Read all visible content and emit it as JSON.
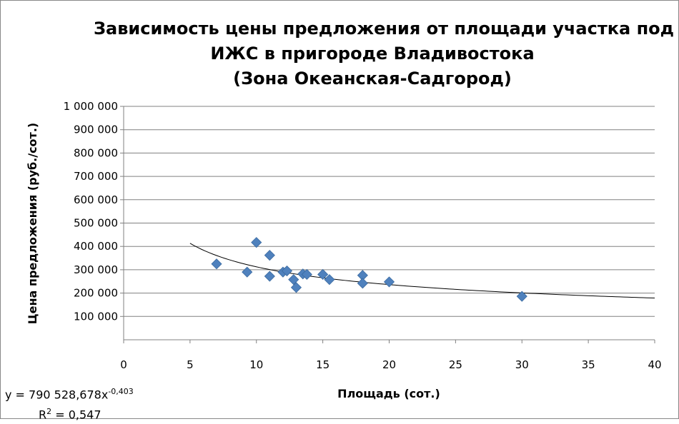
{
  "chart_data": {
    "type": "scatter",
    "title_lines": [
      "Зависимость цены предложения от площади участка под",
      "ИЖС в пригороде Владивостока",
      "(Зона Океанская-Садгород)"
    ],
    "xlabel": "Площадь (сот.)",
    "ylabel": "Цена предложения (руб./сот.)",
    "xlim": [
      0,
      40
    ],
    "ylim": [
      0,
      1000000
    ],
    "x_ticks": [
      0,
      5,
      10,
      15,
      20,
      25,
      30,
      35,
      40
    ],
    "x_tick_labels": [
      "0",
      "5",
      "10",
      "15",
      "20",
      "25",
      "30",
      "35",
      "40"
    ],
    "y_ticks": [
      100000,
      200000,
      300000,
      400000,
      500000,
      600000,
      700000,
      800000,
      900000,
      1000000
    ],
    "y_tick_labels": [
      "100 000",
      "200 000",
      "300 000",
      "400 000",
      "500 000",
      "600 000",
      "700 000",
      "800 000",
      "900 000",
      "1 000 000"
    ],
    "grid": "horizontal",
    "marker": "diamond",
    "marker_color": "#4f81bd",
    "trendline_color": "#000000",
    "series": [
      {
        "points": [
          {
            "x": 7,
            "y": 325000
          },
          {
            "x": 9.3,
            "y": 290000
          },
          {
            "x": 10,
            "y": 417000
          },
          {
            "x": 11,
            "y": 362000
          },
          {
            "x": 11,
            "y": 272000
          },
          {
            "x": 12,
            "y": 290000
          },
          {
            "x": 12.3,
            "y": 295000
          },
          {
            "x": 12.8,
            "y": 258000
          },
          {
            "x": 13,
            "y": 224000
          },
          {
            "x": 13.5,
            "y": 282000
          },
          {
            "x": 13.8,
            "y": 280000
          },
          {
            "x": 15,
            "y": 280000
          },
          {
            "x": 15.5,
            "y": 258000
          },
          {
            "x": 18,
            "y": 276000
          },
          {
            "x": 18,
            "y": 242000
          },
          {
            "x": 20,
            "y": 248000
          },
          {
            "x": 30,
            "y": 186000
          }
        ]
      }
    ],
    "trendline": {
      "type": "power",
      "coefficient": 790528.678,
      "exponent": -0.403,
      "x_range": [
        5,
        40
      ],
      "equation_prefix": "y = 790 528,678x",
      "equation_exponent": "-0,403",
      "r2_label": "R",
      "r2_sup": "2",
      "r2_value": " = 0,547"
    }
  }
}
